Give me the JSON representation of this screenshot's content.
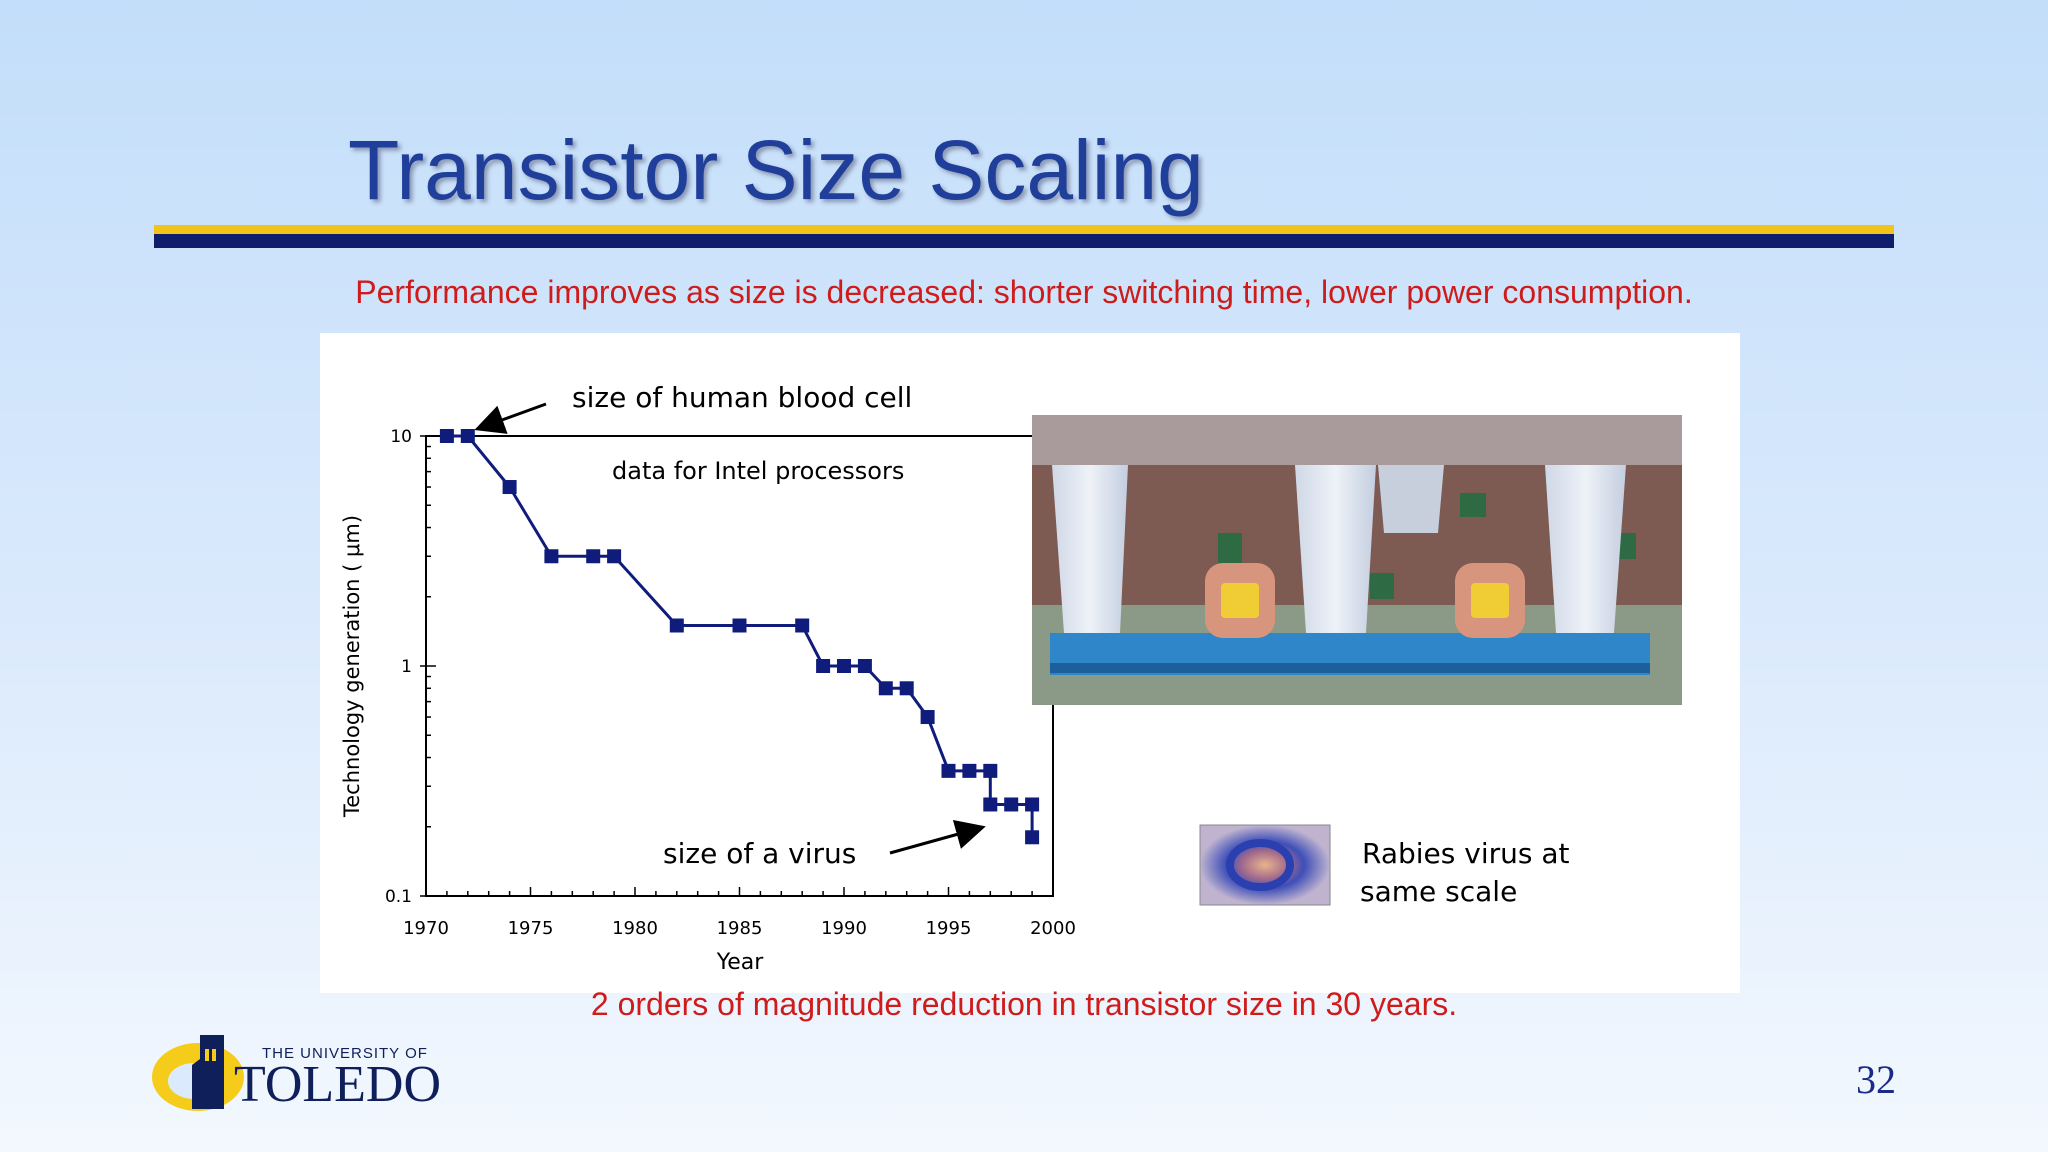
{
  "slide": {
    "title": "Transistor Size Scaling",
    "subtitle": "Performance improves as size is decreased: shorter switching time, lower power consumption.",
    "caption": "2 orders of magnitude reduction in transistor size in 30 years.",
    "page_number": "32"
  },
  "logo": {
    "line1": "THE UNIVERSITY OF",
    "line2": "TOLEDO",
    "colors": {
      "gold": "#f5cc19",
      "navy": "#0f1f5a"
    }
  },
  "colors": {
    "title": "#1f3f9a",
    "accent_gold": "#f2c418",
    "accent_navy": "#0e1e6c",
    "highlight_red": "#d01b1b",
    "series": "#101c7c"
  },
  "chart_data": {
    "type": "line",
    "title": "",
    "xlabel": "Year",
    "ylabel": "Technology generation ( μm)",
    "xlim": [
      1970,
      2000
    ],
    "ylim": [
      0.1,
      10
    ],
    "y_scale": "log",
    "x_ticks": [
      "1970",
      "1975",
      "1980",
      "1985",
      "1990",
      "1995",
      "2000"
    ],
    "y_ticks": [
      "10",
      "1",
      "0.1"
    ],
    "grid": false,
    "series": [
      {
        "x": [
          1971,
          1972,
          1974,
          1976,
          1978,
          1979,
          1982,
          1985,
          1988,
          1989,
          1990,
          1991,
          1992,
          1993,
          1994,
          1995,
          1996,
          1997,
          1997,
          1998,
          1999,
          1999
        ],
        "y": [
          10,
          10,
          6,
          3,
          3,
          3,
          1.5,
          1.5,
          1.5,
          1,
          1,
          1,
          0.8,
          0.8,
          0.6,
          0.35,
          0.35,
          0.35,
          0.25,
          0.25,
          0.25,
          0.18
        ]
      }
    ],
    "annotations": [
      "size of human blood cell",
      "data for Intel processors",
      "size of a virus",
      "Rabies virus at",
      "same scale"
    ]
  },
  "images": {
    "micrograph": "transistor cross-section micrograph",
    "virus": "rabies virus image"
  }
}
